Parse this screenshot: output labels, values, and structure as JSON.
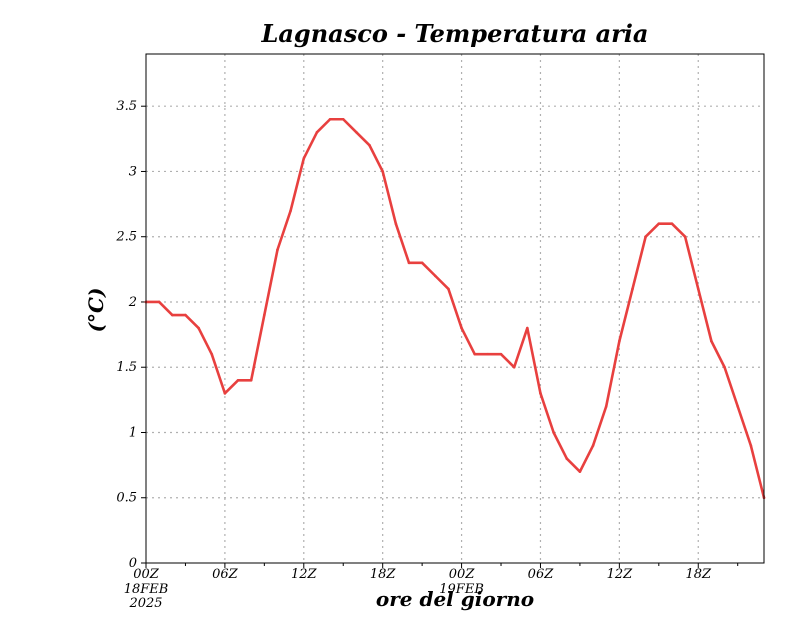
{
  "chart_data": {
    "type": "line",
    "title": "Lagnasco - Temperatura aria",
    "xlabel": "ore del giorno",
    "ylabel": "(°C)",
    "ylim": [
      0,
      3.9
    ],
    "yticks": [
      "0",
      "0.5",
      "1",
      "1.5",
      "2",
      "2.5",
      "3",
      "3.5"
    ],
    "xticks": [
      {
        "label": "00Z",
        "sub": [
          "18FEB",
          "2025"
        ]
      },
      {
        "label": "06Z",
        "sub": []
      },
      {
        "label": "12Z",
        "sub": []
      },
      {
        "label": "18Z",
        "sub": []
      },
      {
        "label": "00Z",
        "sub": [
          "19FEB"
        ]
      },
      {
        "label": "06Z",
        "sub": []
      },
      {
        "label": "12Z",
        "sub": []
      },
      {
        "label": "18Z",
        "sub": []
      }
    ],
    "grid": true,
    "series": [
      {
        "color": "#e8403f",
        "x": [
          0,
          1,
          2,
          3,
          4,
          5,
          6,
          7,
          8,
          9,
          10,
          11,
          12,
          13,
          14,
          15,
          16,
          17,
          18,
          19,
          20,
          21,
          22,
          23,
          24,
          25,
          26,
          27,
          28,
          29,
          30,
          31,
          32,
          33,
          34,
          35,
          36,
          37,
          38,
          39,
          40,
          41,
          42,
          43,
          44,
          45,
          46,
          47
        ],
        "values": [
          2.0,
          2.0,
          1.9,
          1.9,
          1.8,
          1.6,
          1.3,
          1.4,
          1.4,
          1.9,
          2.4,
          2.7,
          3.1,
          3.3,
          3.4,
          3.4,
          3.3,
          3.2,
          3.0,
          2.6,
          2.3,
          2.3,
          2.2,
          2.1,
          1.8,
          1.6,
          1.6,
          1.6,
          1.5,
          1.8,
          1.3,
          1.0,
          0.8,
          0.7,
          0.9,
          1.2,
          1.7,
          2.1,
          2.5,
          2.6,
          2.6,
          2.5,
          2.1,
          1.7,
          1.5,
          1.2,
          0.9,
          0.5
        ]
      }
    ]
  }
}
